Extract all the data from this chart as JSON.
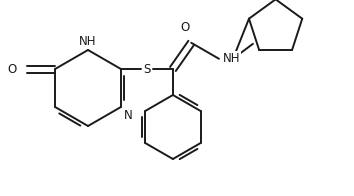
{
  "bg_color": "#ffffff",
  "line_color": "#1a1a1a",
  "line_width": 1.4,
  "font_size": 8.5,
  "figsize": [
    3.54,
    1.96
  ],
  "dpi": 100,
  "xlim": [
    0,
    354
  ],
  "ylim": [
    0,
    196
  ]
}
